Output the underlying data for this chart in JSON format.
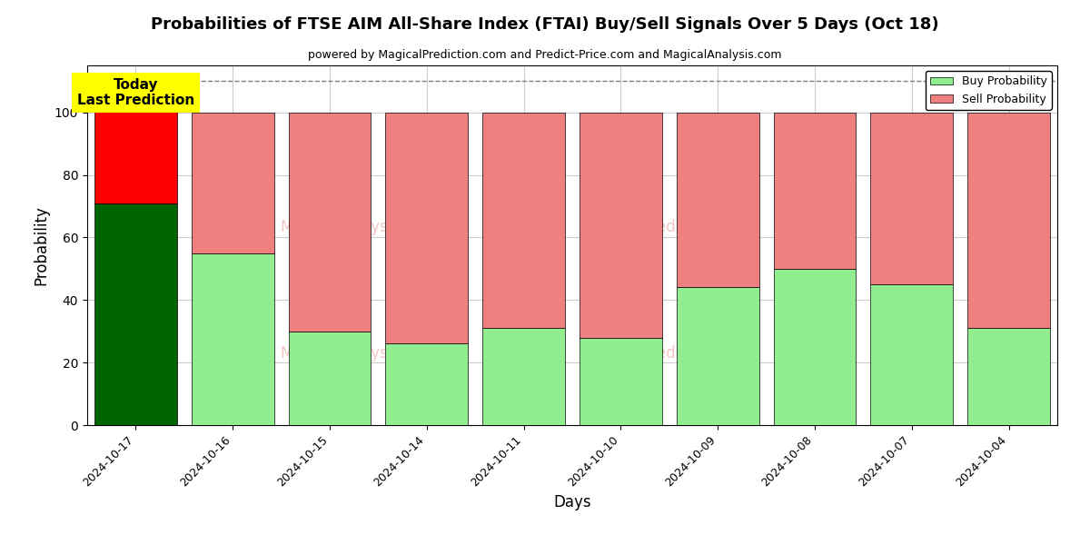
{
  "title": "Probabilities of FTSE AIM All-Share Index (FTAI) Buy/Sell Signals Over 5 Days (Oct 18)",
  "subtitle": "powered by MagicalPrediction.com and Predict-Price.com and MagicalAnalysis.com",
  "xlabel": "Days",
  "ylabel": "Probability",
  "categories": [
    "2024-10-17",
    "2024-10-16",
    "2024-10-15",
    "2024-10-14",
    "2024-10-11",
    "2024-10-10",
    "2024-10-09",
    "2024-10-08",
    "2024-10-07",
    "2024-10-04"
  ],
  "buy_values": [
    71,
    55,
    30,
    26,
    31,
    28,
    44,
    50,
    45,
    31
  ],
  "sell_values": [
    39,
    45,
    70,
    74,
    69,
    72,
    56,
    50,
    55,
    69
  ],
  "buy_colors_normal": "#90EE90",
  "sell_colors_normal": "#F08080",
  "buy_color_today": "#006400",
  "sell_color_today": "#FF0000",
  "today_annotation_bg": "#FFFF00",
  "today_annotation_text": "Today\nLast Prediction",
  "dashed_line_y": 110,
  "ylim_max": 115,
  "ylim_min": 0,
  "yticks": [
    0,
    20,
    40,
    60,
    80,
    100
  ],
  "legend_buy": "Buy Probability",
  "legend_sell": "Sell Probability",
  "background_color": "#ffffff",
  "grid_color": "#cccccc"
}
